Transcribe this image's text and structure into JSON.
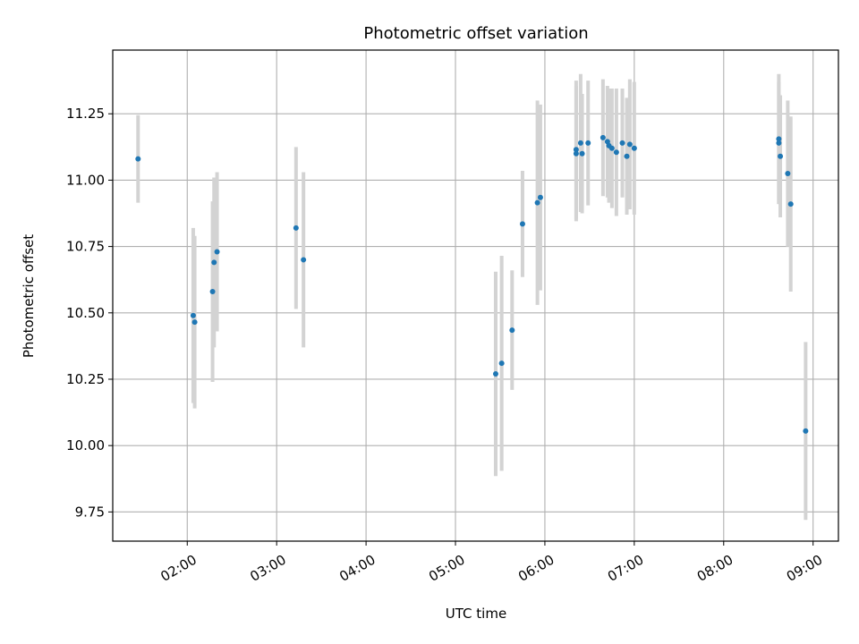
{
  "chart_data": {
    "type": "scatter",
    "title": "Photometric offset variation",
    "xlabel": "UTC time",
    "ylabel": "Photometric offset",
    "xlim": [
      "01:10",
      "09:17"
    ],
    "ylim": [
      9.64,
      11.49
    ],
    "grid": true,
    "x_ticks": [
      "02:00",
      "03:00",
      "04:00",
      "05:00",
      "06:00",
      "07:00",
      "08:00",
      "09:00"
    ],
    "y_ticks": [
      "9.75",
      "10.00",
      "10.25",
      "10.50",
      "10.75",
      "11.00",
      "11.25"
    ],
    "colors": {
      "point": "#1f77b4",
      "errorbar": "#d3d3d3",
      "grid": "#b0b0b0"
    },
    "points": [
      {
        "x": "01:27",
        "y": 11.08,
        "err": 0.165
      },
      {
        "x": "02:04",
        "y": 10.49,
        "err": 0.33
      },
      {
        "x": "02:05",
        "y": 10.465,
        "err": 0.325
      },
      {
        "x": "02:17",
        "y": 10.58,
        "err": 0.34
      },
      {
        "x": "02:18",
        "y": 10.69,
        "err": 0.32
      },
      {
        "x": "02:20",
        "y": 10.73,
        "err": 0.3
      },
      {
        "x": "03:13",
        "y": 10.82,
        "err": 0.305
      },
      {
        "x": "03:18",
        "y": 10.7,
        "err": 0.33
      },
      {
        "x": "05:27",
        "y": 10.27,
        "err": 0.385
      },
      {
        "x": "05:31",
        "y": 10.31,
        "err": 0.405
      },
      {
        "x": "05:38",
        "y": 10.435,
        "err": 0.225
      },
      {
        "x": "05:45",
        "y": 10.835,
        "err": 0.2
      },
      {
        "x": "05:55",
        "y": 10.915,
        "err": 0.385
      },
      {
        "x": "05:57",
        "y": 10.935,
        "err": 0.35
      },
      {
        "x": "06:21",
        "y": 11.1,
        "err": 0.255
      },
      {
        "x": "06:21",
        "y": 11.115,
        "err": 0.26
      },
      {
        "x": "06:24",
        "y": 11.14,
        "err": 0.26
      },
      {
        "x": "06:25",
        "y": 11.1,
        "err": 0.225
      },
      {
        "x": "06:29",
        "y": 11.14,
        "err": 0.235
      },
      {
        "x": "06:39",
        "y": 11.16,
        "err": 0.22
      },
      {
        "x": "06:42",
        "y": 11.145,
        "err": 0.21
      },
      {
        "x": "06:43",
        "y": 11.13,
        "err": 0.215
      },
      {
        "x": "06:45",
        "y": 11.12,
        "err": 0.225
      },
      {
        "x": "06:48",
        "y": 11.105,
        "err": 0.24
      },
      {
        "x": "06:52",
        "y": 11.14,
        "err": 0.205
      },
      {
        "x": "06:55",
        "y": 11.09,
        "err": 0.22
      },
      {
        "x": "06:57",
        "y": 11.135,
        "err": 0.245
      },
      {
        "x": "07:00",
        "y": 11.12,
        "err": 0.25
      },
      {
        "x": "08:37",
        "y": 11.155,
        "err": 0.245
      },
      {
        "x": "08:37",
        "y": 11.14,
        "err": 0.23
      },
      {
        "x": "08:38",
        "y": 11.09,
        "err": 0.23
      },
      {
        "x": "08:43",
        "y": 11.025,
        "err": 0.275
      },
      {
        "x": "08:45",
        "y": 10.91,
        "err": 0.33
      },
      {
        "x": "08:55",
        "y": 10.055,
        "err": 0.335
      }
    ]
  }
}
